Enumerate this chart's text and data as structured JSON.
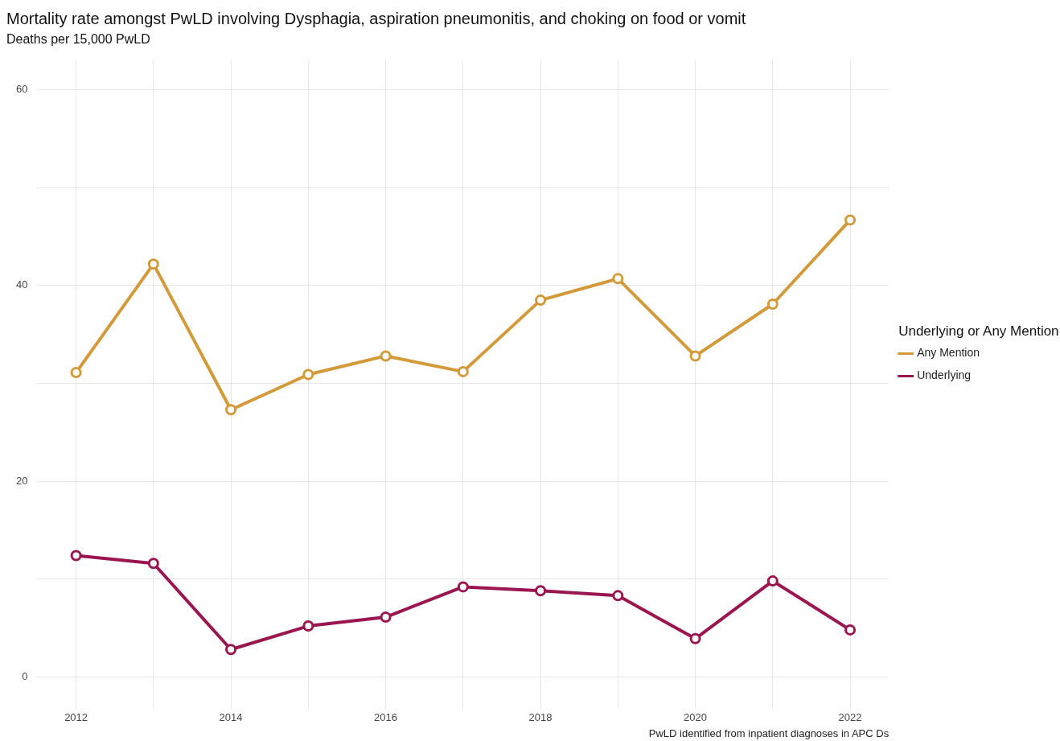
{
  "chart_data": {
    "type": "line",
    "title": "Mortality rate amongst PwLD involving Dysphagia, aspiration pneumonitis, and choking on food or vomit",
    "subtitle": "Deaths per 15,000 PwLD",
    "legend_title": "Underlying or Any Mention",
    "annotations": [
      "PwLD identified from inpatient diagnoses in APC Ds"
    ],
    "x": [
      2012,
      2013,
      2014,
      2015,
      2016,
      2017,
      2018,
      2019,
      2020,
      2021,
      2022
    ],
    "series": [
      {
        "name": "Any Mention",
        "color": "#d49a3a",
        "values": [
          31.1,
          42.2,
          27.3,
          30.9,
          32.8,
          31.2,
          38.5,
          40.7,
          32.8,
          38.1,
          46.7
        ]
      },
      {
        "name": "Underlying",
        "color": "#9b1650",
        "values": [
          12.4,
          11.6,
          2.8,
          5.2,
          6.1,
          9.2,
          8.8,
          8.3,
          3.9,
          9.8,
          4.8
        ]
      }
    ],
    "xlim": [
      2011.5,
      2022.5
    ],
    "ylim": [
      -3.3,
      63
    ],
    "xticks": [
      2012,
      {
        "value": 2013,
        "label": null
      },
      2014,
      {
        "value": 2015,
        "label": null
      },
      2016,
      {
        "value": 2017,
        "label": null
      },
      2018,
      {
        "value": 2019,
        "label": null
      },
      2020,
      {
        "value": 2021,
        "label": null
      },
      2022
    ],
    "yticks": [
      0,
      {
        "value": 10,
        "label": null
      },
      20,
      {
        "value": 30,
        "label": null
      },
      40,
      {
        "value": 50,
        "label": null
      },
      60
    ],
    "grid": true,
    "legend": "right",
    "marker": "circle",
    "line_style": "solid"
  }
}
